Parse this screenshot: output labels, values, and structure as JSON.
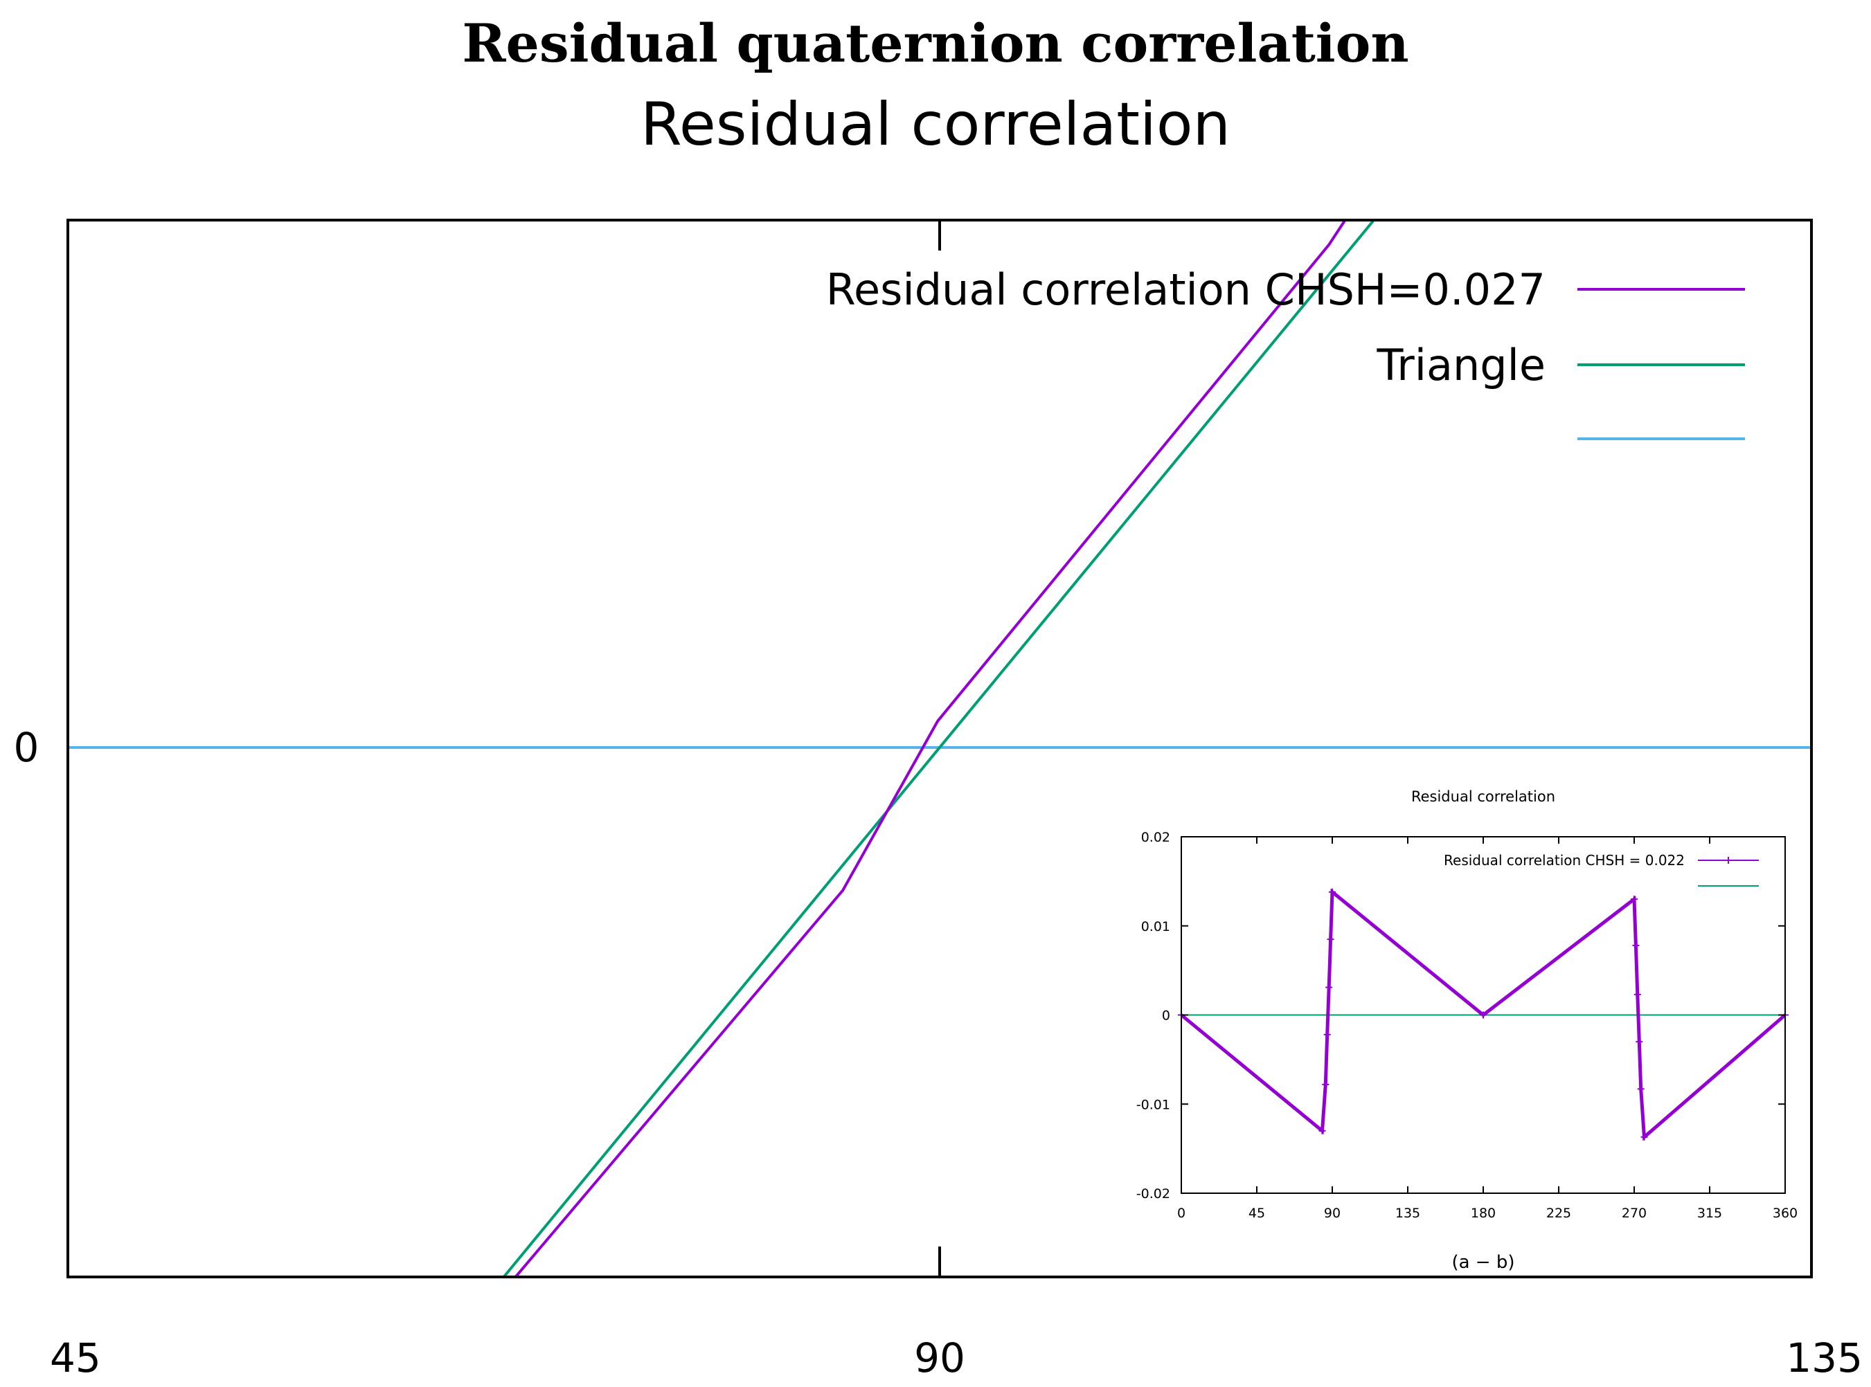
{
  "figure_title": "Residual quaternion correlation",
  "colors": {
    "residual": "#9400d3",
    "triangle": "#009e73",
    "zero": "#56b4e9"
  },
  "chart_data": [
    {
      "type": "line",
      "title": "Residual correlation",
      "xlabel": "",
      "ylabel": "",
      "xlim": [
        45,
        135
      ],
      "x_ticks": [
        "45",
        "90",
        "135"
      ],
      "y_ticks": [
        "0"
      ],
      "legend_position": "top-right",
      "grid": false,
      "series": [
        {
          "name": "Residual correlation CHSH=0.027",
          "color": "#9400d3",
          "x": [
            67.6,
            85,
            89.9,
            110.1,
            111.0
          ],
          "y": [
            -1.022,
            -0.27,
            0.05,
            0.95,
            1.0
          ]
        },
        {
          "name": "Triangle",
          "color": "#009e73",
          "x": [
            67.5,
            112.5
          ],
          "y": [
            -1,
            1
          ]
        },
        {
          "name": "",
          "color": "#56b4e9",
          "x": [
            45,
            135
          ],
          "y": [
            0,
            0
          ]
        }
      ]
    },
    {
      "type": "line",
      "title": "Residual correlation",
      "xlabel": "(a − b)",
      "ylabel": "",
      "xlim": [
        0,
        360
      ],
      "ylim": [
        -0.02,
        0.02
      ],
      "x_ticks": [
        "0",
        "45",
        "90",
        "135",
        "180",
        "225",
        "270",
        "315",
        "360"
      ],
      "y_ticks": [
        "0.02",
        "0.01",
        "0",
        "-0.01",
        "-0.02"
      ],
      "legend_position": "top-right",
      "grid": false,
      "series": [
        {
          "name": "Residual correlation CHSH = 0.022",
          "color": "#9400d3",
          "x": [
            0,
            84,
            86,
            87,
            88,
            89,
            90,
            180,
            270,
            271,
            272,
            273,
            274,
            276,
            360
          ],
          "y": [
            0,
            -0.013,
            -0.0078,
            -0.0022,
            0.0031,
            0.0085,
            0.0138,
            0,
            0.013,
            0.0078,
            0.0023,
            -0.003,
            -0.0083,
            -0.0137,
            0
          ]
        },
        {
          "name": "",
          "color": "#009e73",
          "x": [
            0,
            360
          ],
          "y": [
            0,
            0
          ]
        }
      ]
    }
  ]
}
